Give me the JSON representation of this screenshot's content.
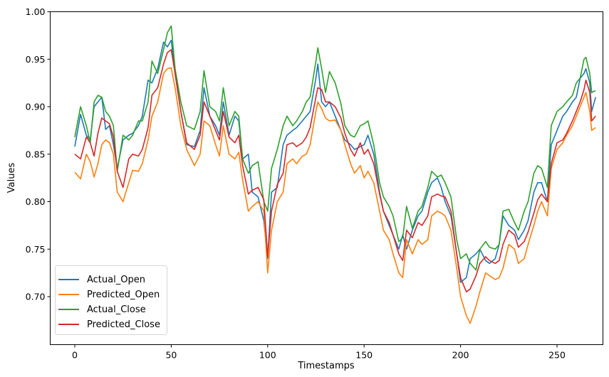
{
  "chart_data": {
    "type": "line",
    "title": "",
    "xlabel": "Timestamps",
    "ylabel": "Values",
    "xlim": [
      -13.5,
      283.5
    ],
    "ylim": [
      0.66,
      1.0
    ],
    "grid": false,
    "legend_position": "lower left",
    "xticks": [
      0,
      50,
      100,
      150,
      200,
      250
    ],
    "xtick_labels": [
      "0",
      "50",
      "100",
      "150",
      "200",
      "250"
    ],
    "yticks": [
      0.7,
      0.75,
      0.8,
      0.85,
      0.9,
      0.95,
      1.0
    ],
    "ytick_labels": [
      "0.70",
      "0.75",
      "0.80",
      "0.85",
      "0.90",
      "0.95",
      "1.00"
    ],
    "x": [
      0,
      3,
      6,
      8,
      10,
      12,
      14,
      16,
      18,
      20,
      22,
      25,
      28,
      30,
      33,
      35,
      38,
      40,
      43,
      46,
      48,
      50,
      52,
      55,
      58,
      62,
      65,
      67,
      70,
      73,
      75,
      77,
      80,
      83,
      85,
      87,
      90,
      92,
      95,
      98,
      100,
      102,
      105,
      108,
      110,
      113,
      115,
      118,
      120,
      122,
      125,
      126,
      128,
      130,
      132,
      135,
      138,
      140,
      143,
      145,
      148,
      150,
      152,
      155,
      158,
      160,
      163,
      165,
      168,
      170,
      172,
      175,
      178,
      180,
      183,
      185,
      188,
      190,
      192,
      195,
      198,
      200,
      203,
      205,
      208,
      210,
      213,
      215,
      218,
      220,
      222,
      225,
      228,
      230,
      233,
      235,
      238,
      240,
      242,
      245,
      247,
      250,
      253,
      255,
      258,
      260,
      262,
      264,
      265,
      267,
      268,
      270
    ],
    "series": [
      {
        "name": "Actual_Open",
        "color": "#1f77b4",
        "values": [
          0.858,
          0.892,
          0.87,
          0.865,
          0.9,
          0.905,
          0.91,
          0.876,
          0.88,
          0.86,
          0.835,
          0.865,
          0.87,
          0.872,
          0.88,
          0.89,
          0.928,
          0.925,
          0.94,
          0.968,
          0.963,
          0.97,
          0.935,
          0.895,
          0.86,
          0.858,
          0.875,
          0.92,
          0.89,
          0.88,
          0.87,
          0.905,
          0.87,
          0.89,
          0.885,
          0.845,
          0.85,
          0.81,
          0.805,
          0.78,
          0.74,
          0.81,
          0.815,
          0.86,
          0.87,
          0.875,
          0.878,
          0.885,
          0.89,
          0.895,
          0.93,
          0.945,
          0.905,
          0.9,
          0.905,
          0.89,
          0.875,
          0.865,
          0.86,
          0.855,
          0.858,
          0.86,
          0.87,
          0.85,
          0.81,
          0.79,
          0.775,
          0.765,
          0.75,
          0.765,
          0.75,
          0.77,
          0.785,
          0.79,
          0.81,
          0.82,
          0.825,
          0.815,
          0.8,
          0.785,
          0.745,
          0.715,
          0.72,
          0.74,
          0.745,
          0.75,
          0.738,
          0.735,
          0.74,
          0.755,
          0.785,
          0.775,
          0.77,
          0.76,
          0.77,
          0.78,
          0.81,
          0.82,
          0.82,
          0.8,
          0.86,
          0.875,
          0.89,
          0.895,
          0.905,
          0.91,
          0.93,
          0.935,
          0.94,
          0.925,
          0.895,
          0.91
        ]
      },
      {
        "name": "Predicted_Open",
        "color": "#ff7f0e",
        "values": [
          0.831,
          0.824,
          0.85,
          0.842,
          0.826,
          0.84,
          0.86,
          0.865,
          0.862,
          0.85,
          0.81,
          0.8,
          0.82,
          0.833,
          0.832,
          0.84,
          0.865,
          0.89,
          0.905,
          0.935,
          0.94,
          0.941,
          0.92,
          0.88,
          0.855,
          0.838,
          0.85,
          0.885,
          0.88,
          0.86,
          0.848,
          0.88,
          0.85,
          0.845,
          0.852,
          0.823,
          0.79,
          0.795,
          0.8,
          0.79,
          0.725,
          0.77,
          0.8,
          0.81,
          0.84,
          0.845,
          0.84,
          0.848,
          0.85,
          0.86,
          0.895,
          0.905,
          0.898,
          0.888,
          0.885,
          0.886,
          0.875,
          0.86,
          0.84,
          0.83,
          0.838,
          0.825,
          0.832,
          0.82,
          0.79,
          0.77,
          0.76,
          0.745,
          0.725,
          0.72,
          0.76,
          0.745,
          0.76,
          0.755,
          0.76,
          0.785,
          0.79,
          0.788,
          0.785,
          0.77,
          0.73,
          0.7,
          0.68,
          0.672,
          0.69,
          0.705,
          0.725,
          0.722,
          0.718,
          0.72,
          0.73,
          0.755,
          0.75,
          0.735,
          0.74,
          0.755,
          0.775,
          0.79,
          0.8,
          0.785,
          0.835,
          0.855,
          0.862,
          0.87,
          0.88,
          0.89,
          0.9,
          0.91,
          0.915,
          0.895,
          0.875,
          0.878
        ]
      },
      {
        "name": "Actual_Close",
        "color": "#2ca02c",
        "values": [
          0.868,
          0.9,
          0.88,
          0.862,
          0.905,
          0.912,
          0.91,
          0.895,
          0.89,
          0.88,
          0.832,
          0.87,
          0.865,
          0.87,
          0.885,
          0.885,
          0.905,
          0.948,
          0.935,
          0.96,
          0.978,
          0.985,
          0.94,
          0.905,
          0.88,
          0.876,
          0.895,
          0.938,
          0.9,
          0.895,
          0.885,
          0.92,
          0.88,
          0.895,
          0.89,
          0.845,
          0.83,
          0.838,
          0.842,
          0.8,
          0.79,
          0.835,
          0.855,
          0.88,
          0.89,
          0.88,
          0.885,
          0.895,
          0.905,
          0.91,
          0.948,
          0.962,
          0.94,
          0.915,
          0.937,
          0.925,
          0.903,
          0.88,
          0.87,
          0.868,
          0.88,
          0.882,
          0.885,
          0.86,
          0.82,
          0.805,
          0.795,
          0.785,
          0.758,
          0.762,
          0.795,
          0.772,
          0.79,
          0.795,
          0.815,
          0.832,
          0.826,
          0.828,
          0.82,
          0.805,
          0.76,
          0.74,
          0.745,
          0.735,
          0.728,
          0.75,
          0.758,
          0.752,
          0.75,
          0.755,
          0.79,
          0.792,
          0.778,
          0.77,
          0.79,
          0.8,
          0.83,
          0.838,
          0.835,
          0.815,
          0.88,
          0.895,
          0.9,
          0.905,
          0.912,
          0.925,
          0.93,
          0.95,
          0.952,
          0.935,
          0.915,
          0.917
        ]
      },
      {
        "name": "Predicted_Close",
        "color": "#d62728",
        "values": [
          0.85,
          0.845,
          0.868,
          0.862,
          0.848,
          0.872,
          0.888,
          0.885,
          0.882,
          0.868,
          0.832,
          0.815,
          0.845,
          0.85,
          0.848,
          0.855,
          0.878,
          0.912,
          0.92,
          0.945,
          0.957,
          0.96,
          0.935,
          0.895,
          0.862,
          0.855,
          0.87,
          0.905,
          0.89,
          0.875,
          0.865,
          0.895,
          0.868,
          0.862,
          0.87,
          0.838,
          0.808,
          0.812,
          0.815,
          0.802,
          0.742,
          0.79,
          0.818,
          0.83,
          0.86,
          0.862,
          0.858,
          0.862,
          0.868,
          0.878,
          0.91,
          0.92,
          0.918,
          0.905,
          0.905,
          0.9,
          0.888,
          0.872,
          0.855,
          0.848,
          0.862,
          0.85,
          0.855,
          0.84,
          0.808,
          0.79,
          0.778,
          0.765,
          0.745,
          0.738,
          0.77,
          0.762,
          0.778,
          0.775,
          0.785,
          0.805,
          0.808,
          0.806,
          0.805,
          0.79,
          0.745,
          0.72,
          0.705,
          0.708,
          0.722,
          0.735,
          0.742,
          0.738,
          0.735,
          0.738,
          0.755,
          0.77,
          0.765,
          0.752,
          0.758,
          0.768,
          0.788,
          0.802,
          0.808,
          0.8,
          0.84,
          0.862,
          0.865,
          0.872,
          0.885,
          0.895,
          0.905,
          0.918,
          0.928,
          0.915,
          0.885,
          0.89
        ]
      }
    ]
  },
  "axes": {
    "xlabel": "Timestamps",
    "ylabel": "Values"
  },
  "legend": {
    "items": [
      {
        "label": "Actual_Open",
        "color": "#1f77b4"
      },
      {
        "label": "Predicted_Open",
        "color": "#ff7f0e"
      },
      {
        "label": "Actual_Close",
        "color": "#2ca02c"
      },
      {
        "label": "Predicted_Close",
        "color": "#d62728"
      }
    ]
  }
}
